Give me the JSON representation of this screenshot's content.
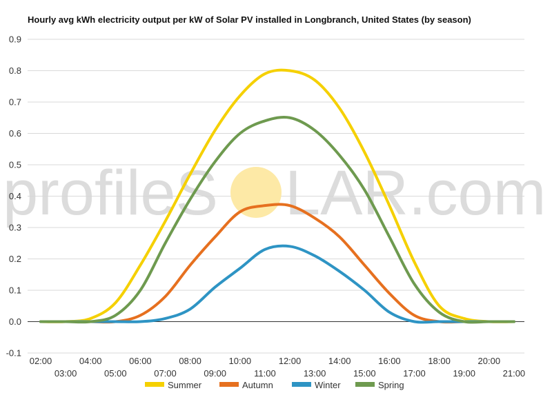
{
  "chart_data": {
    "type": "line",
    "title": "Hourly avg kWh electricity output per kW of Solar PV installed in Longbranch, United States (by season)",
    "xlabel": "",
    "ylabel": "",
    "x": [
      "02:00",
      "03:00",
      "04:00",
      "05:00",
      "06:00",
      "07:00",
      "08:00",
      "09:00",
      "10:00",
      "11:00",
      "12:00",
      "13:00",
      "14:00",
      "15:00",
      "16:00",
      "17:00",
      "18:00",
      "19:00",
      "20:00",
      "21:00"
    ],
    "ylim": [
      -0.1,
      0.9
    ],
    "yticks": [
      "-0.1",
      "0.0",
      "0.1",
      "0.2",
      "0.3",
      "0.4",
      "0.5",
      "0.6",
      "0.7",
      "0.8",
      "0.9"
    ],
    "grid": true,
    "legend": "bottom",
    "series": [
      {
        "name": "Summer",
        "color": "#f5d000",
        "values": [
          0.0,
          0.0,
          0.01,
          0.06,
          0.18,
          0.32,
          0.47,
          0.61,
          0.72,
          0.79,
          0.8,
          0.77,
          0.68,
          0.54,
          0.37,
          0.19,
          0.05,
          0.01,
          0.0,
          0.0
        ]
      },
      {
        "name": "Autumn",
        "color": "#e6701f",
        "values": [
          0.0,
          0.0,
          0.0,
          0.0,
          0.02,
          0.08,
          0.18,
          0.27,
          0.35,
          0.37,
          0.37,
          0.33,
          0.27,
          0.18,
          0.09,
          0.02,
          0.0,
          0.0,
          0.0,
          0.0
        ]
      },
      {
        "name": "Winter",
        "color": "#2e94c4",
        "values": [
          0.0,
          0.0,
          0.0,
          0.0,
          0.0,
          0.01,
          0.04,
          0.11,
          0.17,
          0.23,
          0.24,
          0.21,
          0.16,
          0.1,
          0.03,
          0.0,
          0.0,
          0.0,
          0.0,
          0.0
        ]
      },
      {
        "name": "Spring",
        "color": "#6e9a4f",
        "values": [
          0.0,
          0.0,
          0.0,
          0.02,
          0.1,
          0.25,
          0.39,
          0.51,
          0.6,
          0.64,
          0.65,
          0.61,
          0.53,
          0.42,
          0.27,
          0.12,
          0.03,
          0.0,
          0.0,
          0.0
        ]
      }
    ]
  },
  "watermark": {
    "left": "profileS",
    "right": "LAR.com",
    "sun_color": "#fde9a6"
  }
}
